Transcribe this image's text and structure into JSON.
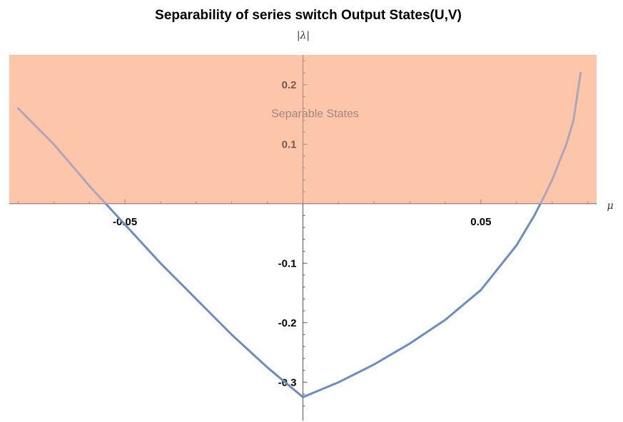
{
  "chart_data": {
    "type": "line",
    "title": "Separability of series switch Output States(U,V)",
    "xlabel": "μ",
    "ylabel": "|λ|",
    "xlim": [
      -0.0825,
      0.0825
    ],
    "ylim": [
      -0.35,
      0.25
    ],
    "x_ticks": [
      -0.05,
      0.05
    ],
    "x_tick_labels": [
      "-0.05",
      "0.05"
    ],
    "y_ticks": [
      -0.3,
      -0.2,
      -0.1,
      0.1,
      0.2
    ],
    "y_tick_labels": [
      "-0.3",
      "-0.2",
      "-0.1",
      "0.1",
      "0.2"
    ],
    "grid": false,
    "shaded_region": {
      "label": "Separable States",
      "y_from": 0,
      "y_to": 0.25,
      "color": "#fdc6ab"
    },
    "series": [
      {
        "color": "#6d8cc0",
        "x": [
          -0.08,
          -0.07,
          -0.06,
          -0.05,
          -0.04,
          -0.03,
          -0.02,
          -0.01,
          0.0,
          0.01,
          0.02,
          0.03,
          0.04,
          0.05,
          0.06,
          0.065,
          0.068,
          0.07,
          0.072,
          0.074,
          0.076,
          0.078
        ],
        "y": [
          0.16,
          0.1,
          0.03,
          -0.035,
          -0.1,
          -0.16,
          -0.22,
          -0.275,
          -0.325,
          -0.3,
          -0.27,
          -0.235,
          -0.195,
          -0.145,
          -0.07,
          -0.02,
          0.015,
          0.04,
          0.07,
          0.1,
          0.14,
          0.22
        ]
      }
    ]
  }
}
